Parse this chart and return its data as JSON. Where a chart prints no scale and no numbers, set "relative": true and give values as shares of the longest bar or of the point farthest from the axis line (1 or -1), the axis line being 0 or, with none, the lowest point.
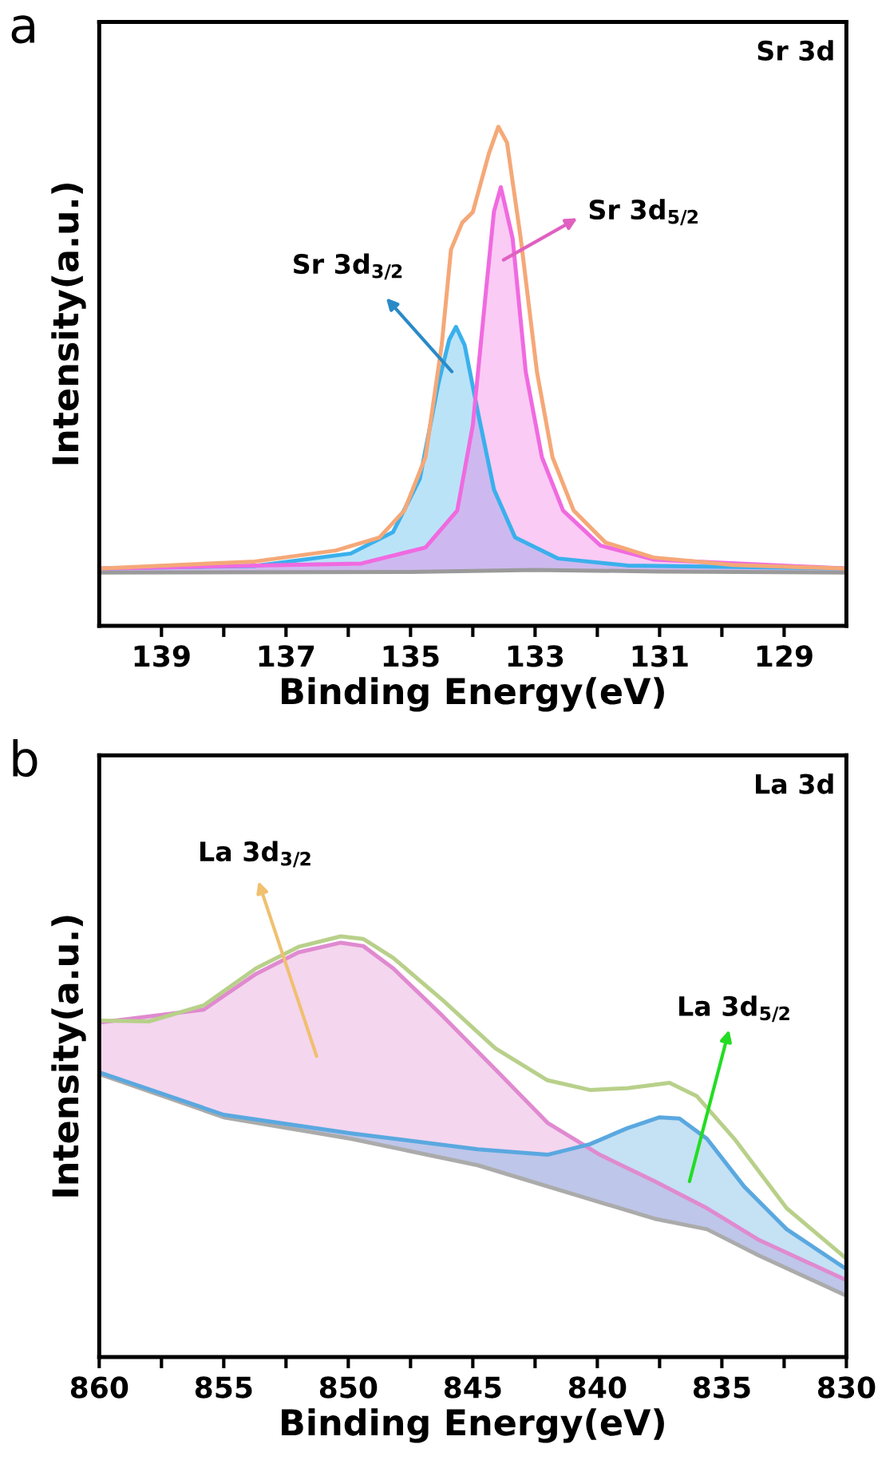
{
  "chart_data": [
    {
      "type": "line",
      "title": "a",
      "xlabel": "Binding Energy(eV)",
      "ylabel": "Intensity(a.u.)",
      "relative": true,
      "tick_labels": "x",
      "grid": false,
      "legend": false,
      "xlim": [
        140,
        128
      ],
      "xticks": [
        139,
        {
          "value": 138,
          "label": null
        },
        137,
        {
          "value": 136,
          "label": null
        },
        135,
        {
          "value": 134,
          "label": null
        },
        133,
        {
          "value": 132,
          "label": null
        },
        131,
        {
          "value": 130,
          "label": null
        },
        129
      ],
      "annotations": [
        "Sr 3d",
        "Sr 3d$_{3/2}$",
        "Sr 3d$_{5/2}$"
      ],
      "series": [
        {
          "color": "#9a9a9a",
          "x": [
            140,
            135,
            133,
            131,
            128
          ],
          "values": [
            0.107,
            0.108,
            0.112,
            0.109,
            0.107
          ]
        },
        {
          "type": "area",
          "color": "#3ab0ec",
          "x": [
            140,
            137.5,
            135.96,
            135.28,
            134.85,
            134.55,
            134.38,
            134.27,
            134.13,
            133.91,
            133.66,
            133.32,
            132.63,
            131.52,
            128
          ],
          "values": [
            0.115,
            0.12,
            0.145,
            0.188,
            0.295,
            0.487,
            0.573,
            0.599,
            0.562,
            0.423,
            0.273,
            0.177,
            0.135,
            0.121,
            0.115
          ]
        },
        {
          "type": "area",
          "color": "#f06ae0",
          "x": [
            140,
            135.79,
            134.76,
            134.25,
            134.0,
            133.79,
            133.66,
            133.55,
            133.36,
            133.15,
            132.89,
            132.55,
            131.95,
            131.1,
            128
          ],
          "values": [
            0.115,
            0.125,
            0.157,
            0.231,
            0.402,
            0.669,
            0.83,
            0.879,
            0.776,
            0.509,
            0.338,
            0.231,
            0.161,
            0.133,
            0.115
          ]
        },
        {
          "color": "#f5a878",
          "x": [
            140,
            137.5,
            136.2,
            135.5,
            135.1,
            134.76,
            134.5,
            134.35,
            134.17,
            134.0,
            133.74,
            133.59,
            133.45,
            133.23,
            132.97,
            132.72,
            132.38,
            131.87,
            131.1,
            129.82,
            128.03
          ],
          "values": [
            0.115,
            0.129,
            0.151,
            0.177,
            0.231,
            0.338,
            0.562,
            0.754,
            0.808,
            0.829,
            0.947,
            1.0,
            0.968,
            0.776,
            0.509,
            0.338,
            0.231,
            0.167,
            0.137,
            0.122,
            0.115
          ]
        }
      ]
    },
    {
      "type": "line",
      "title": "b",
      "xlabel": "Binding Energy(eV)",
      "ylabel": "Intensity(a.u.)",
      "relative": true,
      "tick_labels": "x",
      "grid": false,
      "legend": false,
      "xlim": [
        860,
        830
      ],
      "xticks": [
        860,
        {
          "value": 857.5,
          "label": null
        },
        855,
        {
          "value": 852.5,
          "label": null
        },
        850,
        {
          "value": 847.5,
          "label": null
        },
        845,
        {
          "value": 842.5,
          "label": null
        },
        840,
        {
          "value": 837.5,
          "label": null
        },
        835,
        {
          "value": 832.5,
          "label": null
        },
        830
      ],
      "annotations": [
        "La 3d",
        "La 3d$_{3/2}$",
        "La 3d$_{5/2}$"
      ],
      "series": [
        {
          "color": "#ababab",
          "x": [
            860,
            855.0,
            849.9,
            844.8,
            840.9,
            837.7,
            835.6,
            833.5,
            830
          ],
          "values": [
            0.673,
            0.57,
            0.519,
            0.456,
            0.386,
            0.329,
            0.304,
            0.241,
            0.146
          ]
        },
        {
          "type": "area",
          "color": "#e08ad0",
          "x": [
            860,
            855.8,
            853.7,
            852.0,
            850.3,
            849.4,
            848.2,
            846.2,
            844.1,
            842.0,
            839.9,
            837.7,
            835.6,
            833.5,
            830
          ],
          "values": [
            0.795,
            0.826,
            0.911,
            0.962,
            0.985,
            0.977,
            0.924,
            0.81,
            0.684,
            0.557,
            0.481,
            0.418,
            0.354,
            0.278,
            0.183
          ]
        },
        {
          "type": "area",
          "color": "#5aa8e0",
          "x": [
            860,
            855.0,
            849.9,
            844.8,
            842.0,
            840.3,
            838.8,
            837.5,
            836.7,
            835.6,
            834.1,
            832.4,
            830
          ],
          "values": [
            0.677,
            0.576,
            0.532,
            0.494,
            0.481,
            0.506,
            0.544,
            0.57,
            0.567,
            0.519,
            0.405,
            0.304,
            0.209
          ]
        },
        {
          "color": "#b8d08a",
          "x": [
            860,
            858.0,
            855.8,
            853.7,
            852.0,
            850.3,
            849.4,
            848.2,
            846.2,
            844.1,
            842.0,
            840.3,
            838.8,
            837.1,
            836.0,
            834.5,
            832.4,
            830
          ],
          "values": [
            0.8,
            0.798,
            0.836,
            0.924,
            0.975,
            1.0,
            0.994,
            0.949,
            0.848,
            0.734,
            0.658,
            0.635,
            0.639,
            0.652,
            0.62,
            0.519,
            0.354,
            0.234
          ]
        }
      ]
    }
  ]
}
